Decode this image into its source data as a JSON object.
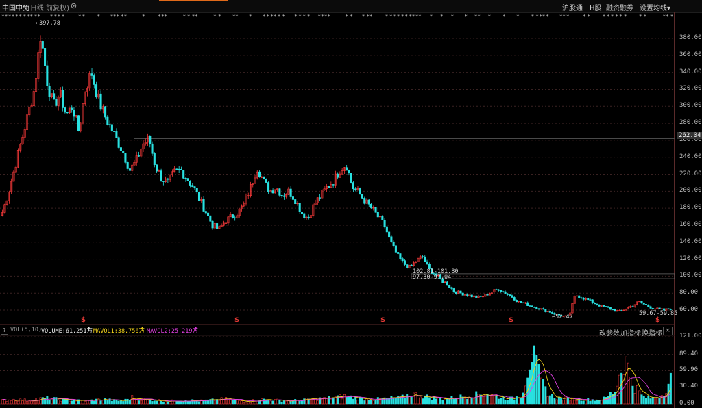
{
  "topbar": {
    "stock_name": "中国中免",
    "subtitle": "(日线 前复权)",
    "links": [
      "沪股通",
      "H股",
      "融资融券",
      "设置均线▾"
    ]
  },
  "price_axis": {
    "ticks": [
      "380.00",
      "360.00",
      "340.00",
      "320.00",
      "300.00",
      "280.00",
      "260.00",
      "240.00",
      "220.00",
      "200.00",
      "180.00",
      "160.00",
      "140.00",
      "120.00",
      "100.00",
      "80.00",
      "60.00"
    ],
    "current_price": "262.04"
  },
  "volume_axis": {
    "ticks": [
      "121.00",
      "89.40",
      "59.90",
      "30.40",
      "0.00"
    ]
  },
  "annotations": {
    "high": "397.78",
    "low": "52.47",
    "gap_upper": "102.81-101.80",
    "gap_lower": "97.30-97.04",
    "gap_recent": "59.67-59.85"
  },
  "indicator": {
    "name": "VOL(5,10)",
    "volume": "VOLUME:61.251万",
    "mavol1": "MAVOL1:38.756万",
    "mavol2": "MAVOL2:25.219万",
    "buttons": [
      "改参数",
      "加指标",
      "换指标"
    ],
    "close": "×",
    "help": "?"
  },
  "signal_marks": [
    "$",
    "$",
    "$",
    "$",
    "$"
  ],
  "colors": {
    "up": "#ff3b3b",
    "down": "#29e1e1",
    "mavol1": "#f2d21b",
    "mavol2": "#e040e0",
    "grid": "#3a2222"
  },
  "chart_data": {
    "type": "candlestick",
    "price_range": [
      45,
      400
    ],
    "volume_range": [
      0,
      121
    ],
    "close_path": [
      175,
      200,
      230,
      260,
      290,
      320,
      385,
      330,
      300,
      315,
      290,
      300,
      270,
      320,
      340,
      310,
      290,
      275,
      260,
      245,
      225,
      235,
      255,
      262,
      230,
      215,
      210,
      222,
      225,
      215,
      205,
      190,
      175,
      160,
      155,
      165,
      170,
      175,
      185,
      205,
      228,
      212,
      200,
      205,
      195,
      200,
      190,
      175,
      168,
      185,
      195,
      205,
      212,
      225,
      232,
      205,
      198,
      188,
      180,
      170,
      160,
      140,
      125,
      115,
      110,
      118,
      123,
      108,
      102,
      95,
      90,
      82,
      80,
      78,
      76,
      75,
      78,
      82,
      85,
      80,
      76,
      70,
      68,
      65,
      63,
      60,
      58,
      55,
      53,
      52,
      78,
      75,
      72,
      68,
      65,
      63,
      60,
      58,
      62,
      65,
      70,
      66,
      63,
      61,
      60,
      62
    ],
    "volume_profile": [
      6,
      8,
      7,
      6,
      9,
      10,
      8,
      7,
      6,
      5,
      7,
      8,
      6,
      5,
      12,
      8,
      7,
      6,
      5,
      6,
      7,
      5,
      6,
      7,
      9,
      6,
      5,
      6,
      8,
      7,
      6,
      5,
      7,
      8,
      9,
      10,
      12,
      14,
      11,
      9,
      8,
      9,
      10,
      11,
      18,
      15,
      12,
      10,
      9,
      12,
      14,
      16,
      20,
      14,
      11,
      9,
      18,
      95,
      40,
      15,
      10,
      9,
      8,
      8,
      7,
      10,
      25,
      84,
      35,
      12,
      10,
      15,
      45
    ]
  }
}
